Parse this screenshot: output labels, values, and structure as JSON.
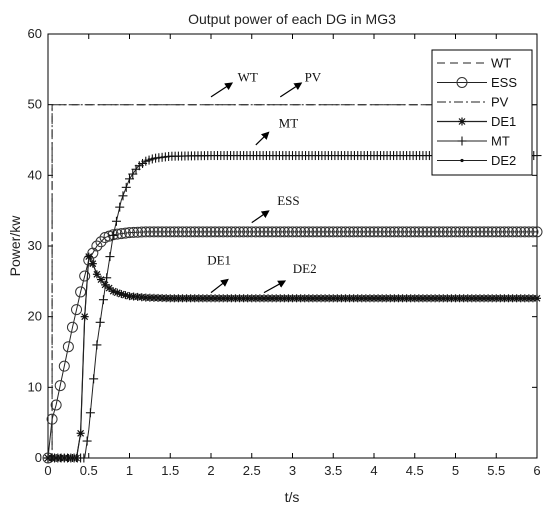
{
  "chart_data": {
    "type": "line",
    "title": "Output power of each DG in MG3",
    "xlabel": "t/s",
    "ylabel": "Power/kw",
    "xlim": [
      0,
      6
    ],
    "ylim": [
      0,
      60
    ],
    "x_ticks": [
      "0",
      "0.5",
      "1",
      "1.5",
      "2",
      "2.5",
      "3",
      "3.5",
      "4",
      "4.5",
      "5",
      "5.5",
      "6"
    ],
    "y_ticks": [
      "0",
      "10",
      "20",
      "30",
      "40",
      "50",
      "60"
    ],
    "grid": false,
    "legend_position": "top-right",
    "series": [
      {
        "name": "WT",
        "style": "dashed",
        "x": [
          0,
          0.05,
          0.05,
          6
        ],
        "y": [
          0,
          0,
          50,
          50
        ]
      },
      {
        "name": "ESS",
        "style": "circle-markers",
        "x": [
          0,
          0.05,
          0.1,
          0.2,
          0.3,
          0.4,
          0.5,
          0.6,
          0.7,
          0.8,
          1.0,
          1.2,
          1.5,
          2,
          3,
          4,
          5,
          6
        ],
        "y": [
          0,
          5.5,
          7.5,
          13,
          18.5,
          23.5,
          28,
          30,
          31.2,
          31.6,
          31.9,
          32,
          32,
          32,
          32,
          32,
          32,
          32
        ]
      },
      {
        "name": "PV",
        "style": "dash-dot",
        "x": [
          0,
          0.05,
          0.05,
          6
        ],
        "y": [
          0,
          0,
          50,
          50
        ]
      },
      {
        "name": "DE1",
        "style": "star-markers",
        "x": [
          0,
          0.35,
          0.4,
          0.45,
          0.5,
          0.55,
          0.6,
          0.7,
          0.8,
          0.9,
          1.0,
          1.2,
          1.5,
          2,
          3,
          4,
          5,
          6
        ],
        "y": [
          0,
          0,
          3.5,
          20,
          28.5,
          27.5,
          26,
          24.5,
          23.6,
          23.2,
          22.9,
          22.7,
          22.6,
          22.6,
          22.6,
          22.6,
          22.6,
          22.6
        ]
      },
      {
        "name": "MT",
        "style": "plus-markers",
        "x": [
          0,
          0.45,
          0.5,
          0.55,
          0.6,
          0.7,
          0.8,
          0.9,
          1.0,
          1.1,
          1.2,
          1.3,
          1.5,
          2,
          3,
          4,
          5,
          6
        ],
        "y": [
          0,
          0,
          4,
          10,
          16,
          24,
          31.5,
          36.5,
          39.5,
          41.2,
          42,
          42.4,
          42.7,
          42.8,
          42.8,
          42.8,
          42.8,
          42.8
        ]
      },
      {
        "name": "DE2",
        "style": "dot-markers",
        "x": [
          0,
          0.35,
          0.4,
          0.45,
          0.5,
          0.55,
          0.6,
          0.7,
          0.8,
          0.9,
          1.0,
          1.2,
          1.5,
          2,
          3,
          4,
          5,
          6
        ],
        "y": [
          0,
          0,
          3.5,
          20,
          28.5,
          27.5,
          26,
          24.5,
          23.6,
          23.2,
          22.9,
          22.7,
          22.6,
          22.6,
          22.6,
          22.6,
          22.6,
          22.6
        ]
      }
    ],
    "annotations": [
      {
        "text": "WT",
        "x": 2.45,
        "y": 53.3,
        "arrow_from": [
          2.0,
          51.1
        ],
        "arrow_to": [
          2.25,
          53.0
        ]
      },
      {
        "text": "PV",
        "x": 3.25,
        "y": 53.3,
        "arrow_from": [
          2.85,
          51.1
        ],
        "arrow_to": [
          3.1,
          53.0
        ]
      },
      {
        "text": "MT",
        "x": 2.95,
        "y": 46.8,
        "arrow_from": [
          2.55,
          44.3
        ],
        "arrow_to": [
          2.7,
          46.0
        ]
      },
      {
        "text": "ESS",
        "x": 2.95,
        "y": 35.8,
        "arrow_from": [
          2.5,
          33.3
        ],
        "arrow_to": [
          2.7,
          34.9
        ]
      },
      {
        "text": "DE1",
        "x": 2.1,
        "y": 27.4,
        "arrow_from": [
          2.0,
          23.4
        ],
        "arrow_to": [
          2.2,
          25.2
        ]
      },
      {
        "text": "DE2",
        "x": 3.15,
        "y": 26.2,
        "arrow_from": [
          2.65,
          23.4
        ],
        "arrow_to": [
          2.9,
          25.0
        ]
      }
    ]
  }
}
